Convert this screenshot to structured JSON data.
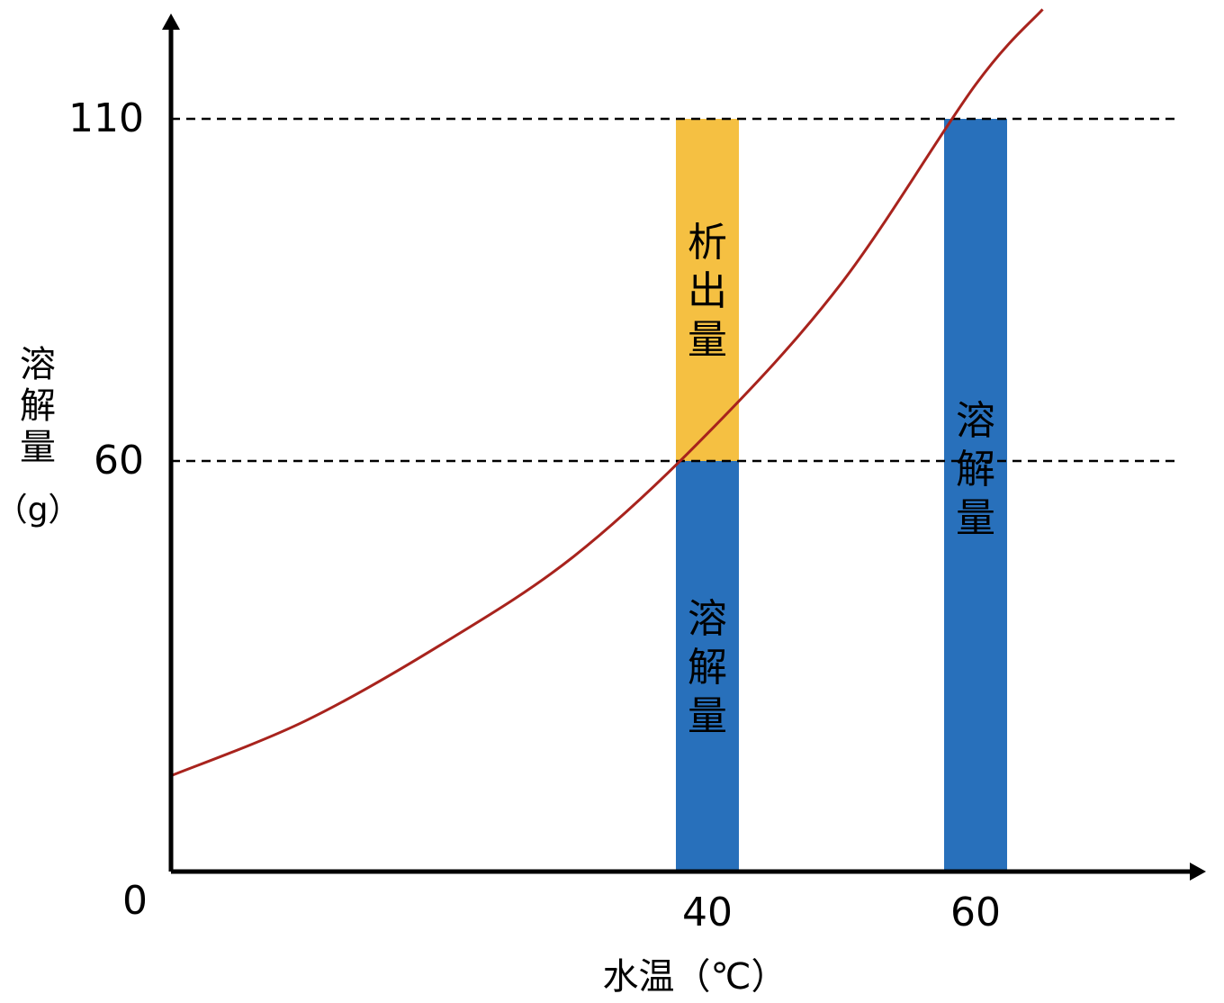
{
  "chart_data": {
    "type": "bar",
    "xlabel": "水温（℃）",
    "ylabel": "溶解量（g）",
    "x_ticks": [
      "0",
      "40",
      "60"
    ],
    "y_ticks": [
      "110",
      "60"
    ],
    "origin_label": "0",
    "reference_lines": [
      110,
      60
    ],
    "bars": [
      {
        "x": 40,
        "segments": [
          {
            "label": "溶解量",
            "from": 0,
            "to": 60,
            "color": "#2870BB"
          },
          {
            "label": "析出量",
            "from": 60,
            "to": 110,
            "color": "#F5C042"
          }
        ]
      },
      {
        "x": 60,
        "segments": [
          {
            "label": "溶解量",
            "from": 0,
            "to": 110,
            "color": "#2870BB"
          }
        ]
      }
    ],
    "curve": {
      "color": "#A8231D",
      "points": [
        [
          0,
          14
        ],
        [
          10,
          22
        ],
        [
          20,
          33
        ],
        [
          30,
          46
        ],
        [
          40,
          64
        ],
        [
          50,
          86
        ],
        [
          60,
          115
        ],
        [
          65,
          126
        ]
      ]
    },
    "xlim": [
      0,
      78
    ],
    "ylim": [
      0,
      120
    ]
  }
}
